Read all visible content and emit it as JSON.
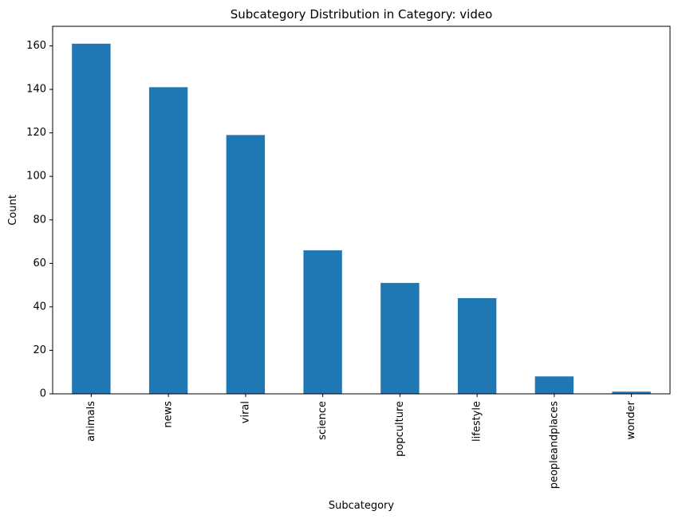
{
  "chart_data": {
    "type": "bar",
    "title": "Subcategory Distribution in Category: video",
    "xlabel": "Subcategory",
    "ylabel": "Count",
    "categories": [
      "animals",
      "news",
      "viral",
      "science",
      "popculture",
      "lifestyle",
      "peopleandplaces",
      "wonder"
    ],
    "values": [
      161,
      141,
      119,
      66,
      51,
      44,
      8,
      1
    ],
    "ylim": [
      0,
      169
    ],
    "yticks": [
      0,
      20,
      40,
      60,
      80,
      100,
      120,
      140,
      160
    ],
    "bar_color": "#1f77b4",
    "grid": false,
    "legend": "none"
  }
}
